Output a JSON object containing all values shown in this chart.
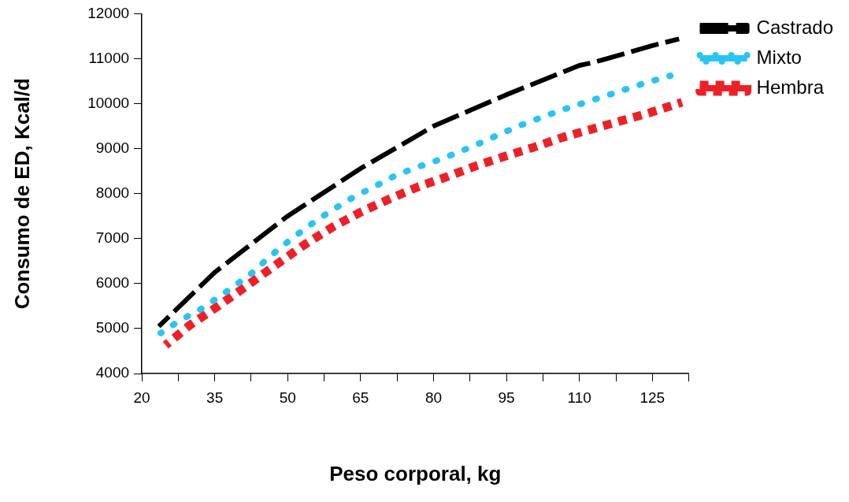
{
  "chart_data": {
    "type": "line",
    "xlabel": "Peso corporal, kg",
    "ylabel": "Consumo de ED, Kcal/d",
    "xlim": [
      20,
      132.5
    ],
    "xticks": [
      20,
      {
        "value": 27.5,
        "label": null
      },
      35,
      {
        "value": 42.5,
        "label": null
      },
      50,
      {
        "value": 57.5,
        "label": null
      },
      65,
      {
        "value": 72.5,
        "label": null
      },
      80,
      {
        "value": 87.5,
        "label": null
      },
      95,
      {
        "value": 102.5,
        "label": null
      },
      110,
      {
        "value": 117.5,
        "label": null
      },
      125,
      {
        "value": 132.5,
        "label": null
      }
    ],
    "ylim": [
      4000,
      12000
    ],
    "yticks": [
      4000,
      5000,
      6000,
      7000,
      8000,
      9000,
      10000,
      11000,
      12000
    ],
    "grid": false,
    "legend": "right",
    "marker": "none",
    "series": [
      {
        "name": "Castrado",
        "color": "#000000",
        "line_style": "dashed",
        "x": [
          23.5,
          35,
          50,
          65,
          80,
          95,
          110,
          113,
          125,
          130.5
        ],
        "values": [
          5050,
          6250,
          7500,
          8560,
          9500,
          10200,
          10850,
          10920,
          11290,
          11440
        ]
      },
      {
        "name": "Mixto",
        "color": "#29c4f4",
        "line_style": "dotted",
        "x": [
          23.9,
          27.5,
          31.8,
          35.4,
          39.1,
          42.7,
          46,
          49.2,
          52.7,
          56.4,
          60,
          64,
          67.9,
          72.1,
          76.4,
          80.8,
          85.1,
          89.5,
          93.6,
          97.9,
          102.3,
          106.4,
          110.7,
          115.3,
          119.8,
          124.1,
          128.7
        ],
        "values": [
          4900,
          5160,
          5410,
          5670,
          5950,
          6240,
          6570,
          6860,
          7150,
          7440,
          7690,
          7950,
          8160,
          8400,
          8580,
          8740,
          8920,
          9120,
          9320,
          9520,
          9700,
          9860,
          10010,
          10170,
          10330,
          10480,
          10620
        ]
      },
      {
        "name": "Hembra",
        "color": "#ee2027",
        "line_style": "dashed",
        "x": [
          24.9,
          29.8,
          35.7,
          41.6,
          47.5,
          53.4,
          59.3,
          65.2,
          71.1,
          77,
          82.9,
          88.8,
          94.7,
          100.6,
          106.5,
          112.4,
          118.3,
          124.2,
          131.1
        ],
        "values": [
          4630,
          5070,
          5500,
          5950,
          6410,
          6860,
          7260,
          7600,
          7890,
          8160,
          8380,
          8620,
          8830,
          9030,
          9250,
          9430,
          9610,
          9790,
          10030
        ]
      }
    ]
  }
}
